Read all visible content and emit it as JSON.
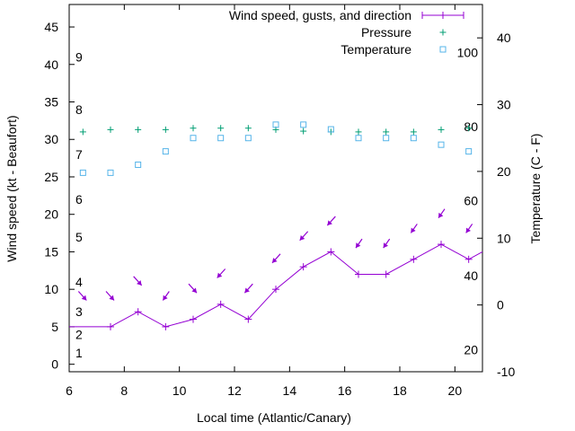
{
  "chart_data": {
    "type": "line",
    "xlabel": "Local time (Atlantic/Canary)",
    "ylabel": "Wind speed (kt - Beaufort)",
    "y2label": "Temperature (C - F)",
    "xlim": [
      6,
      21
    ],
    "ylim": [
      -1,
      48
    ],
    "y2lim": [
      -10,
      45
    ],
    "x_ticks": [
      6,
      8,
      10,
      12,
      14,
      16,
      18,
      20
    ],
    "y_ticks": [
      0,
      5,
      10,
      15,
      20,
      25,
      30,
      35,
      40,
      45
    ],
    "y2_ticks": [
      -10,
      0,
      10,
      20,
      30,
      40
    ],
    "beaufort_labels": [
      {
        "label": "1",
        "value": 1.5
      },
      {
        "label": "2",
        "value": 4
      },
      {
        "label": "3",
        "value": 7
      },
      {
        "label": "4",
        "value": 11
      },
      {
        "label": "5",
        "value": 17
      },
      {
        "label": "6",
        "value": 22
      },
      {
        "label": "7",
        "value": 28
      },
      {
        "label": "8",
        "value": 34
      },
      {
        "label": "9",
        "value": 41
      }
    ],
    "fahrenheit_labels": [
      {
        "label": "20",
        "value": -6.7
      },
      {
        "label": "40",
        "value": 4.4
      },
      {
        "label": "60",
        "value": 15.6
      },
      {
        "label": "80",
        "value": 26.7
      },
      {
        "label": "100",
        "value": 37.8
      }
    ],
    "legend": {
      "position": "top-right",
      "entries": [
        "Wind speed, gusts, and direction",
        "Pressure",
        "Temperature"
      ]
    },
    "series": [
      {
        "name": "Wind speed, gusts, and direction",
        "color": "#9400d3",
        "x": [
          6,
          7.5,
          8.5,
          9.5,
          10.5,
          11.5,
          12.5,
          13.5,
          14.5,
          15.5,
          16.5,
          17.5,
          18.5,
          19.5,
          20.5,
          21
        ],
        "values": [
          5,
          5,
          7,
          5,
          6,
          8,
          6,
          10,
          13,
          15,
          12,
          12,
          14,
          16,
          14,
          15
        ]
      },
      {
        "name": "Wind direction arrows",
        "color": "#9400d3",
        "x": [
          6.5,
          7.5,
          8.5,
          9.5,
          10.5,
          11.5,
          12.5,
          13.5,
          14.5,
          15.5,
          16.5,
          17.5,
          18.5,
          19.5,
          20.5
        ],
        "values": [
          9,
          9,
          11,
          9,
          10,
          12,
          10,
          14,
          17,
          19,
          16,
          16,
          18,
          20,
          18
        ]
      },
      {
        "name": "Pressure",
        "color": "#009e73",
        "x": [
          6.5,
          7.5,
          8.5,
          9.5,
          10.5,
          11.5,
          12.5,
          13.5,
          14.5,
          15.5,
          16.5,
          17.5,
          18.5,
          19.5,
          20.5
        ],
        "values": [
          31,
          31.3,
          31.3,
          31.3,
          31.5,
          31.5,
          31.5,
          31.3,
          31.1,
          31,
          31,
          31,
          31,
          31.3,
          31.5
        ]
      },
      {
        "name": "Temperature",
        "color": "#56b4e9",
        "x": [
          6.5,
          7.5,
          8.5,
          9.5,
          10.5,
          11.5,
          12.5,
          13.5,
          14.5,
          15.5,
          16.5,
          17.5,
          18.5,
          19.5,
          20.5
        ],
        "values": [
          19.8,
          19.8,
          21,
          23,
          25,
          25,
          25,
          27,
          27,
          26.3,
          25,
          25,
          25,
          24,
          23
        ]
      }
    ]
  }
}
